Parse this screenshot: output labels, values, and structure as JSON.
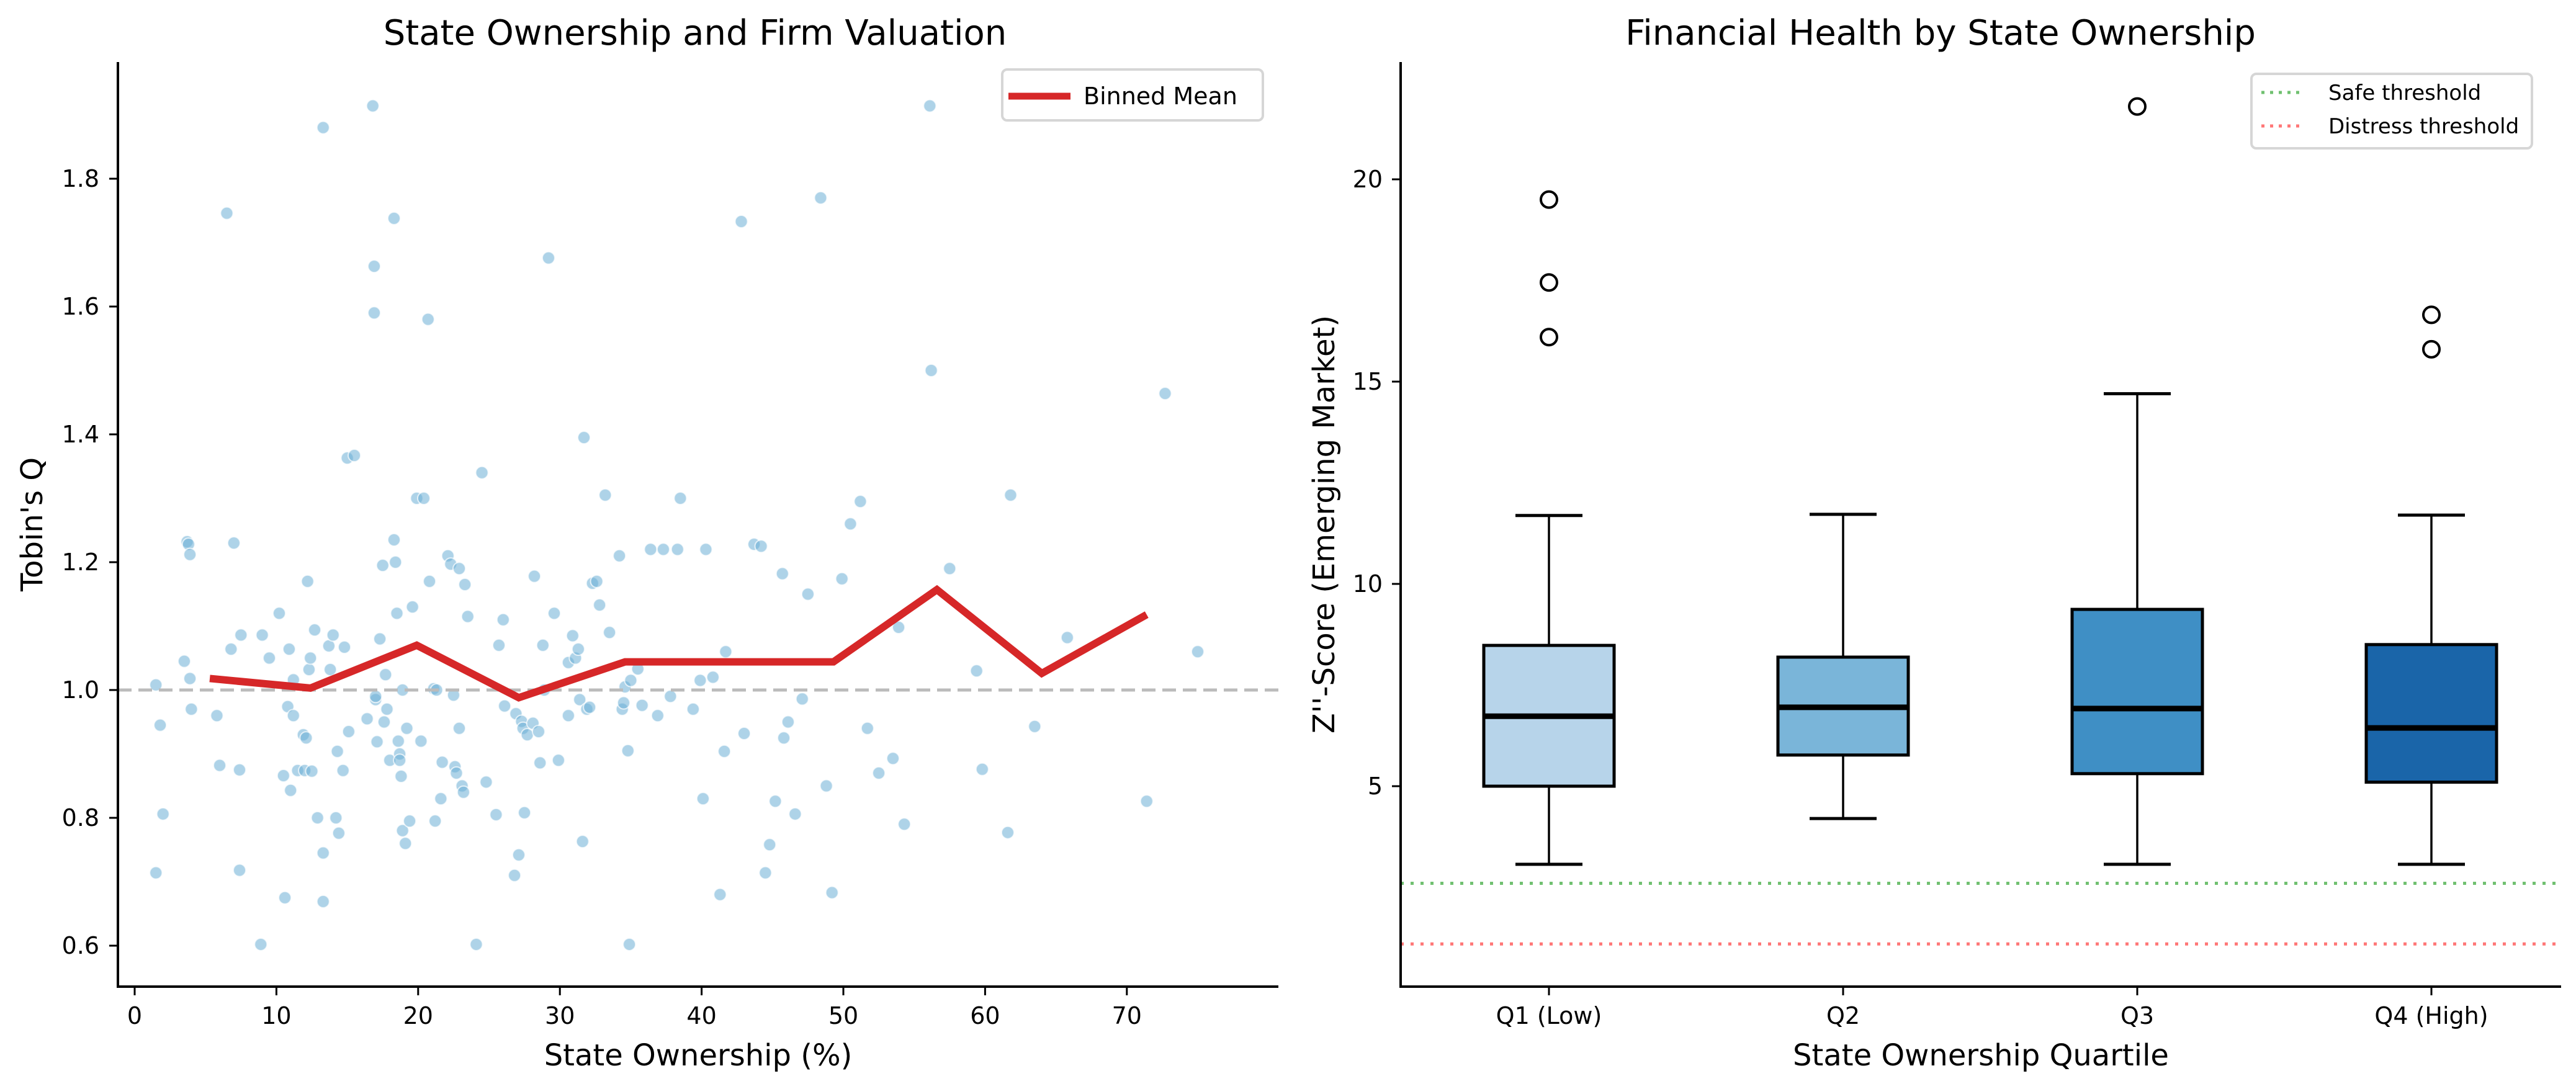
{
  "chart_data": [
    {
      "type": "scatter",
      "title": "State Ownership and Firm Valuation",
      "xlabel": "State Ownership (%)",
      "ylabel": "Tobin's Q",
      "xlim": [
        -2.5,
        79
      ],
      "ylim": [
        0.54,
        1.98
      ],
      "xticks": [
        0,
        10,
        20,
        30,
        40,
        50,
        60,
        70
      ],
      "yticks": [
        0.6,
        0.8,
        1.0,
        1.2,
        1.4,
        1.6,
        1.8
      ],
      "ytick_labels": [
        "0.6",
        "0.8",
        "1.0",
        "1.2",
        "1.4",
        "1.6",
        "1.8"
      ],
      "grid": false,
      "reference_line": {
        "y": 1.0,
        "style": "dashed",
        "color": "#bbbbbb"
      },
      "scatter_color": "#6baed6",
      "line_color": "#d62728",
      "legend": {
        "position": "top-right",
        "entries": [
          "Binned Mean"
        ]
      },
      "series": [
        {
          "name": "Binned Mean",
          "type": "line",
          "x": [
            5.3,
            12.4,
            19.9,
            27.1,
            34.6,
            49.3,
            56.6,
            64.0,
            71.4
          ],
          "y": [
            1.018,
            1.003,
            1.07,
            0.988,
            1.044,
            1.044,
            1.157,
            1.026,
            1.118
          ]
        },
        {
          "name": "Firms",
          "type": "scatter",
          "points": [
            [
              1.5,
              1.008
            ],
            [
              1.8,
              0.945
            ],
            [
              2.0,
              0.806
            ],
            [
              1.5,
              0.714
            ],
            [
              3.7,
              1.232
            ],
            [
              3.8,
              1.228
            ],
            [
              3.9,
              1.212
            ],
            [
              3.9,
              1.018
            ],
            [
              4.0,
              0.97
            ],
            [
              3.5,
              1.045
            ],
            [
              5.8,
              0.96
            ],
            [
              6.0,
              0.882
            ],
            [
              6.5,
              1.746
            ],
            [
              6.8,
              1.064
            ],
            [
              7.0,
              1.23
            ],
            [
              7.4,
              0.875
            ],
            [
              7.4,
              0.718
            ],
            [
              7.5,
              1.086
            ],
            [
              8.9,
              0.602
            ],
            [
              9.0,
              1.086
            ],
            [
              9.5,
              1.05
            ],
            [
              10.2,
              1.12
            ],
            [
              10.5,
              0.866
            ],
            [
              10.6,
              0.675
            ],
            [
              10.8,
              0.974
            ],
            [
              10.9,
              1.064
            ],
            [
              11.0,
              0.843
            ],
            [
              11.2,
              1.016
            ],
            [
              11.2,
              0.96
            ],
            [
              11.5,
              0.874
            ],
            [
              11.9,
              0.93
            ],
            [
              12.0,
              0.874
            ],
            [
              12.1,
              0.925
            ],
            [
              12.2,
              1.17
            ],
            [
              12.3,
              1.032
            ],
            [
              12.4,
              1.05
            ],
            [
              12.5,
              0.873
            ],
            [
              12.7,
              1.094
            ],
            [
              12.9,
              0.8
            ],
            [
              13.3,
              1.88
            ],
            [
              13.3,
              0.745
            ],
            [
              13.3,
              0.669
            ],
            [
              13.8,
              1.032
            ],
            [
              13.7,
              1.069
            ],
            [
              14.0,
              1.086
            ],
            [
              14.2,
              0.8
            ],
            [
              14.3,
              0.904
            ],
            [
              14.4,
              0.776
            ],
            [
              14.7,
              0.874
            ],
            [
              14.8,
              1.067
            ],
            [
              15.0,
              1.363
            ],
            [
              15.1,
              0.935
            ],
            [
              15.5,
              1.367
            ],
            [
              16.4,
              0.955
            ],
            [
              16.8,
              1.914
            ],
            [
              16.9,
              1.663
            ],
            [
              16.9,
              1.59
            ],
            [
              17.0,
              0.985
            ],
            [
              17.0,
              0.99
            ],
            [
              17.1,
              0.919
            ],
            [
              17.3,
              1.08
            ],
            [
              17.5,
              1.195
            ],
            [
              17.6,
              0.95
            ],
            [
              17.7,
              1.024
            ],
            [
              17.8,
              0.97
            ],
            [
              18.0,
              0.89
            ],
            [
              18.3,
              1.738
            ],
            [
              18.3,
              1.235
            ],
            [
              18.4,
              1.2
            ],
            [
              18.5,
              1.12
            ],
            [
              18.6,
              0.92
            ],
            [
              18.7,
              0.9
            ],
            [
              18.7,
              0.89
            ],
            [
              18.8,
              0.865
            ],
            [
              18.9,
              1.0
            ],
            [
              18.9,
              0.78
            ],
            [
              19.1,
              0.76
            ],
            [
              19.2,
              0.94
            ],
            [
              19.4,
              0.795
            ],
            [
              19.6,
              1.13
            ],
            [
              19.9,
              1.3
            ],
            [
              20.2,
              0.92
            ],
            [
              20.4,
              1.3
            ],
            [
              20.7,
              1.58
            ],
            [
              20.8,
              1.17
            ],
            [
              21.1,
              1.002
            ],
            [
              21.2,
              0.795
            ],
            [
              21.3,
              1.0
            ],
            [
              21.6,
              0.83
            ],
            [
              21.7,
              0.887
            ],
            [
              22.1,
              1.21
            ],
            [
              22.3,
              1.197
            ],
            [
              22.5,
              0.992
            ],
            [
              22.6,
              0.88
            ],
            [
              22.7,
              0.87
            ],
            [
              22.9,
              1.19
            ],
            [
              22.9,
              0.94
            ],
            [
              23.1,
              0.85
            ],
            [
              23.2,
              0.84
            ],
            [
              23.3,
              1.165
            ],
            [
              23.5,
              1.115
            ],
            [
              24.1,
              0.602
            ],
            [
              24.5,
              1.34
            ],
            [
              24.8,
              0.856
            ],
            [
              25.5,
              0.805
            ],
            [
              25.7,
              1.07
            ],
            [
              26.0,
              1.11
            ],
            [
              26.1,
              0.975
            ],
            [
              26.8,
              0.71
            ],
            [
              26.9,
              0.963
            ],
            [
              27.1,
              0.742
            ],
            [
              27.3,
              0.951
            ],
            [
              27.4,
              0.94
            ],
            [
              27.5,
              0.808
            ],
            [
              27.7,
              0.93
            ],
            [
              28.1,
              0.948
            ],
            [
              28.2,
              1.178
            ],
            [
              28.5,
              0.935
            ],
            [
              28.6,
              0.886
            ],
            [
              28.8,
              1.07
            ],
            [
              28.9,
              1.0
            ],
            [
              29.2,
              1.676
            ],
            [
              29.6,
              1.12
            ],
            [
              29.9,
              0.89
            ],
            [
              30.6,
              1.043
            ],
            [
              30.6,
              0.96
            ],
            [
              30.9,
              1.085
            ],
            [
              31.1,
              1.05
            ],
            [
              31.3,
              1.064
            ],
            [
              31.4,
              0.985
            ],
            [
              31.6,
              0.763
            ],
            [
              31.7,
              1.395
            ],
            [
              31.9,
              0.97
            ],
            [
              32.1,
              0.973
            ],
            [
              32.3,
              1.167
            ],
            [
              32.6,
              1.17
            ],
            [
              32.8,
              1.133
            ],
            [
              33.2,
              1.305
            ],
            [
              33.5,
              1.09
            ],
            [
              34.2,
              1.21
            ],
            [
              34.4,
              0.97
            ],
            [
              34.5,
              0.98
            ],
            [
              34.6,
              1.005
            ],
            [
              34.8,
              0.905
            ],
            [
              34.9,
              0.602
            ],
            [
              35.0,
              1.015
            ],
            [
              35.5,
              1.033
            ],
            [
              35.8,
              0.976
            ],
            [
              36.4,
              1.22
            ],
            [
              36.9,
              0.96
            ],
            [
              37.3,
              1.22
            ],
            [
              37.8,
              0.99
            ],
            [
              38.3,
              1.22
            ],
            [
              38.5,
              1.3
            ],
            [
              39.4,
              0.97
            ],
            [
              39.9,
              1.015
            ],
            [
              40.1,
              0.83
            ],
            [
              40.3,
              1.22
            ],
            [
              40.8,
              1.02
            ],
            [
              41.3,
              0.68
            ],
            [
              41.6,
              0.904
            ],
            [
              41.7,
              1.06
            ],
            [
              42.8,
              1.733
            ],
            [
              43.0,
              0.932
            ],
            [
              43.7,
              1.228
            ],
            [
              44.2,
              1.225
            ],
            [
              44.5,
              0.714
            ],
            [
              44.8,
              0.758
            ],
            [
              45.2,
              0.826
            ],
            [
              45.7,
              1.182
            ],
            [
              45.8,
              0.925
            ],
            [
              46.1,
              0.95
            ],
            [
              46.6,
              0.806
            ],
            [
              47.1,
              0.986
            ],
            [
              47.5,
              1.15
            ],
            [
              48.4,
              1.77
            ],
            [
              48.8,
              0.85
            ],
            [
              49.2,
              0.683
            ],
            [
              49.9,
              1.174
            ],
            [
              50.5,
              1.26
            ],
            [
              51.2,
              1.295
            ],
            [
              51.7,
              0.94
            ],
            [
              52.5,
              0.87
            ],
            [
              53.5,
              0.893
            ],
            [
              53.9,
              1.098
            ],
            [
              54.3,
              0.79
            ],
            [
              56.1,
              1.914
            ],
            [
              56.2,
              1.5
            ],
            [
              57.5,
              1.19
            ],
            [
              59.4,
              1.03
            ],
            [
              59.8,
              0.876
            ],
            [
              61.6,
              0.777
            ],
            [
              61.8,
              1.305
            ],
            [
              63.5,
              0.943
            ],
            [
              65.8,
              1.082
            ],
            [
              71.4,
              0.826
            ],
            [
              72.7,
              1.464
            ],
            [
              75.0,
              1.06
            ]
          ]
        }
      ]
    },
    {
      "type": "box",
      "title": "Financial Health by State Ownership",
      "xlabel": "State Ownership Quartile",
      "ylabel": "Z''-Score (Emerging Market)",
      "categories": [
        "Q1 (Low)",
        "Q2",
        "Q3",
        "Q4 (High)"
      ],
      "ylim": [
        0.05,
        22.85
      ],
      "yticks": [
        5,
        10,
        15,
        20
      ],
      "ytick_labels": [
        "5",
        "10",
        "15",
        "20"
      ],
      "grid": false,
      "box_colors": [
        "#b7d4ea",
        "#7ab5d9",
        "#3f8fc5",
        "#1a65a9"
      ],
      "boxes": [
        {
          "category": "Q1 (Low)",
          "whisker_low": 3.07,
          "q1": 5.0,
          "median": 6.73,
          "q3": 8.48,
          "whisker_high": 11.69,
          "outliers": [
            16.1,
            17.45,
            19.5
          ]
        },
        {
          "category": "Q2",
          "whisker_low": 4.2,
          "q1": 5.77,
          "median": 6.95,
          "q3": 8.19,
          "whisker_high": 11.72,
          "outliers": []
        },
        {
          "category": "Q3",
          "whisker_low": 3.07,
          "q1": 5.31,
          "median": 6.92,
          "q3": 9.37,
          "whisker_high": 14.7,
          "outliers": [
            21.8
          ]
        },
        {
          "category": "Q4 (High)",
          "whisker_low": 3.07,
          "q1": 5.1,
          "median": 6.44,
          "q3": 8.5,
          "whisker_high": 11.7,
          "outliers": [
            15.8,
            16.65
          ]
        }
      ],
      "reference_lines": [
        {
          "name": "Safe threshold",
          "y": 2.6,
          "color": "#70c070",
          "style": "dotted"
        },
        {
          "name": "Distress threshold",
          "y": 1.1,
          "color": "#ff7777",
          "style": "dotted"
        }
      ],
      "legend": {
        "position": "top-right",
        "entries": [
          "Safe threshold",
          "Distress threshold"
        ]
      }
    }
  ]
}
